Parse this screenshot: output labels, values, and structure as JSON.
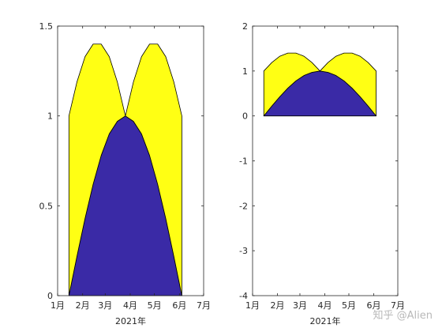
{
  "watermark": "知乎 @Alien",
  "chart_data": [
    {
      "type": "area",
      "title": "",
      "xlabel": "2021年",
      "ylabel": "",
      "xlim": [
        "2021-01-01",
        "2021-07-01"
      ],
      "ylim": [
        0,
        1.5
      ],
      "xtick_labels": [
        "1月",
        "2月",
        "3月",
        "4月",
        "5月",
        "6月",
        "7月"
      ],
      "ytick_labels": [
        "0",
        "0.5",
        "1",
        "1.5"
      ],
      "grid": false,
      "stacked": true,
      "x": [
        "2021-01-15",
        "2021-01-25",
        "2021-02-04",
        "2021-02-14",
        "2021-02-24",
        "2021-03-06",
        "2021-03-16",
        "2021-03-26",
        "2021-04-05",
        "2021-04-15",
        "2021-04-25",
        "2021-05-05",
        "2021-05-15",
        "2021-05-25",
        "2021-06-04"
      ],
      "series": [
        {
          "values": [
            0.0,
            0.22,
            0.43,
            0.62,
            0.78,
            0.9,
            0.97,
            1.0,
            0.97,
            0.9,
            0.78,
            0.62,
            0.43,
            0.22,
            0.0
          ],
          "color": "#3a2aa6"
        },
        {
          "values": [
            1.0,
            0.97,
            0.9,
            0.78,
            0.62,
            0.43,
            0.22,
            0.0,
            0.22,
            0.43,
            0.62,
            0.78,
            0.9,
            0.97,
            1.0
          ],
          "color": "#ffff14"
        }
      ]
    },
    {
      "type": "area",
      "title": "",
      "xlabel": "2021年",
      "ylabel": "",
      "xlim": [
        "2021-01-01",
        "2021-07-01"
      ],
      "ylim": [
        -4,
        2
      ],
      "xtick_labels": [
        "1月",
        "2月",
        "3月",
        "4月",
        "5月",
        "6月",
        "7月"
      ],
      "ytick_labels": [
        "-4",
        "-3",
        "-2",
        "-1",
        "0",
        "1",
        "2"
      ],
      "grid": false,
      "stacked": true,
      "x": [
        "2021-01-15",
        "2021-01-25",
        "2021-02-04",
        "2021-02-14",
        "2021-02-24",
        "2021-03-06",
        "2021-03-16",
        "2021-03-26",
        "2021-04-05",
        "2021-04-15",
        "2021-04-25",
        "2021-05-05",
        "2021-05-15",
        "2021-05-25",
        "2021-06-04"
      ],
      "series": [
        {
          "values": [
            0.0,
            0.22,
            0.43,
            0.62,
            0.78,
            0.9,
            0.97,
            1.0,
            0.97,
            0.9,
            0.78,
            0.62,
            0.43,
            0.22,
            0.0
          ],
          "color": "#3a2aa6"
        },
        {
          "values": [
            1.0,
            0.97,
            0.9,
            0.78,
            0.62,
            0.43,
            0.22,
            0.0,
            0.22,
            0.43,
            0.62,
            0.78,
            0.9,
            0.97,
            1.0
          ],
          "color": "#ffff14"
        }
      ]
    }
  ]
}
